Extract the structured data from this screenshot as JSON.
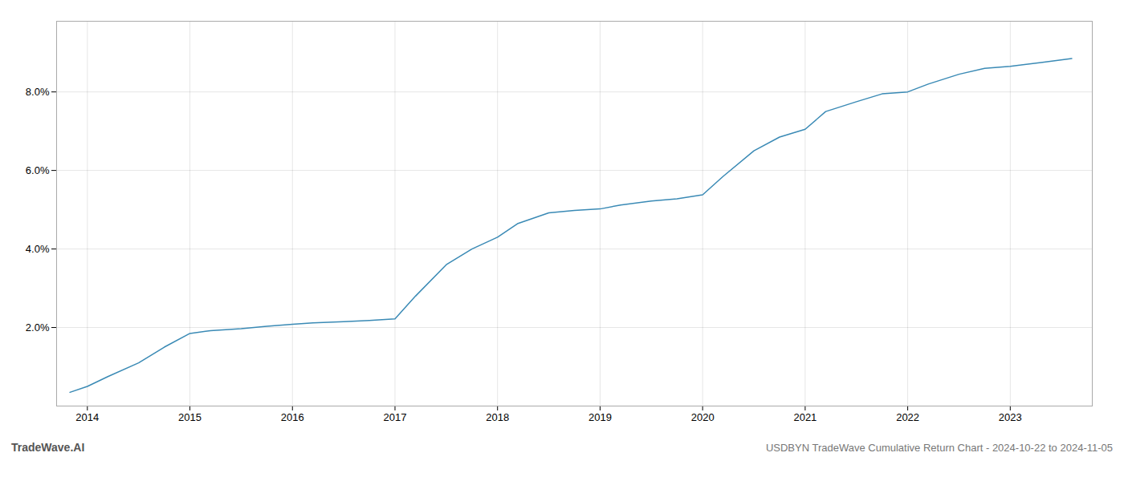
{
  "chart_data": {
    "type": "line",
    "title": "USDBYN TradeWave Cumulative Return Chart - 2024-10-22 to 2024-11-05",
    "annotations": [
      "TradeWave.AI"
    ],
    "x": [
      2013.83,
      2014.0,
      2014.2,
      2014.5,
      2014.75,
      2015.0,
      2015.2,
      2015.5,
      2015.75,
      2016.0,
      2016.2,
      2016.5,
      2016.75,
      2017.0,
      2017.2,
      2017.5,
      2017.75,
      2018.0,
      2018.2,
      2018.5,
      2018.75,
      2019.0,
      2019.2,
      2019.5,
      2019.75,
      2020.0,
      2020.2,
      2020.5,
      2020.75,
      2021.0,
      2021.2,
      2021.5,
      2021.75,
      2022.0,
      2022.2,
      2022.5,
      2022.75,
      2023.0,
      2023.3,
      2023.6
    ],
    "values": [
      0.35,
      0.5,
      0.75,
      1.1,
      1.5,
      1.85,
      1.92,
      1.97,
      2.03,
      2.08,
      2.12,
      2.15,
      2.18,
      2.22,
      2.8,
      3.6,
      4.0,
      4.3,
      4.65,
      4.92,
      4.98,
      5.02,
      5.12,
      5.22,
      5.28,
      5.38,
      5.85,
      6.5,
      6.85,
      7.05,
      7.5,
      7.75,
      7.95,
      8.0,
      8.2,
      8.45,
      8.6,
      8.65,
      8.75,
      8.85
    ],
    "color": "#3a8ab5",
    "xlim": [
      2013.7,
      2023.8
    ],
    "xticks": [
      2014,
      2015,
      2016,
      2017,
      2018,
      2019,
      2020,
      2021,
      2022,
      2023
    ],
    "ylim": [
      0.0,
      9.8
    ],
    "yticks": [
      {
        "value": 2.0,
        "label": "2.0%"
      },
      {
        "value": 4.0,
        "label": "4.0%"
      },
      {
        "value": 6.0,
        "label": "6.0%"
      },
      {
        "value": 8.0,
        "label": "8.0%"
      }
    ],
    "grid": true
  }
}
